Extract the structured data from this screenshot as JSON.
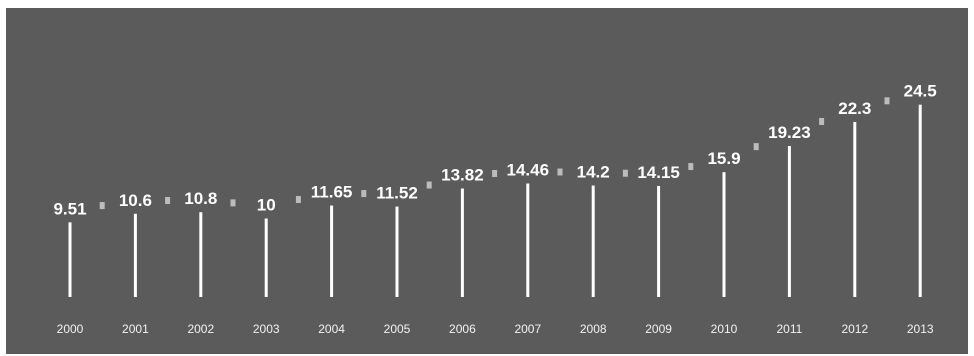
{
  "chart_data": {
    "type": "bar",
    "categories": [
      "2000",
      "2001",
      "2002",
      "2003",
      "2004",
      "2005",
      "2006",
      "2007",
      "2008",
      "2009",
      "2010",
      "2011",
      "2012",
      "2013"
    ],
    "values": [
      9.51,
      10.6,
      10.8,
      10,
      11.65,
      11.52,
      13.82,
      14.46,
      14.2,
      14.15,
      15.9,
      19.23,
      22.3,
      24.5
    ],
    "data_labels": [
      "9.51",
      "10.6",
      "10.8",
      "10",
      "11.65",
      "11.52",
      "13.82",
      "14.46",
      "14.2",
      "14.15",
      "15.9",
      "19.23",
      "22.3",
      "24.5"
    ],
    "title": "",
    "xlabel": "",
    "ylabel": "",
    "grid": false,
    "legend": "none",
    "colors": {
      "background": "#5b5b5b",
      "bar": "#ffffff",
      "label": "#ffffff",
      "tick": "#f2f2f2"
    }
  }
}
